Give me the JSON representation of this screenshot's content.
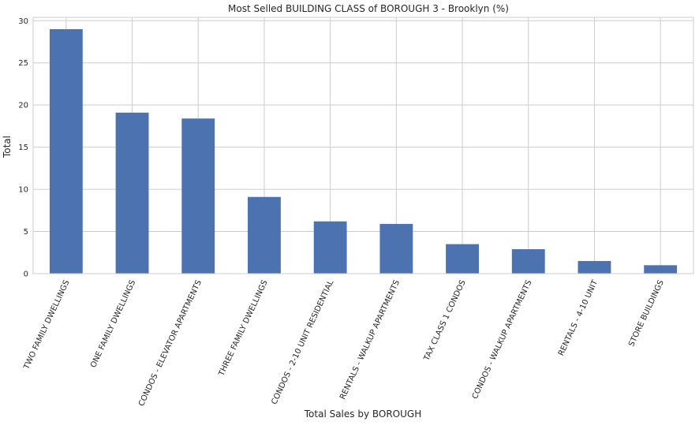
{
  "chart_data": {
    "type": "bar",
    "title": "Most Selled BUILDING CLASS of BOROUGH 3 - Brooklyn (%)",
    "xlabel": "Total Sales by BOROUGH",
    "ylabel": "Total",
    "categories": [
      "TWO FAMILY DWELLINGS",
      "ONE FAMILY DWELLINGS",
      "CONDOS - ELEVATOR APARTMENTS",
      "THREE FAMILY DWELLINGS",
      "CONDOS - 2-10 UNIT RESIDENTIAL",
      "RENTALS - WALKUP APARTMENTS",
      "TAX CLASS 1 CONDOS",
      "CONDOS - WALKUP APARTMENTS",
      "RENTALS - 4-10 UNIT",
      "STORE BUILDINGS"
    ],
    "values": [
      29.0,
      19.1,
      18.4,
      9.1,
      6.2,
      5.9,
      3.5,
      2.9,
      1.5,
      1.0
    ],
    "ylim": [
      0,
      30.4
    ],
    "yticks": [
      "0",
      "5",
      "10",
      "15",
      "20",
      "25",
      "30"
    ],
    "grid": true,
    "bar_color": "#4c72b0",
    "grid_color": "#cccccc",
    "axis_color": "#cccccc"
  }
}
